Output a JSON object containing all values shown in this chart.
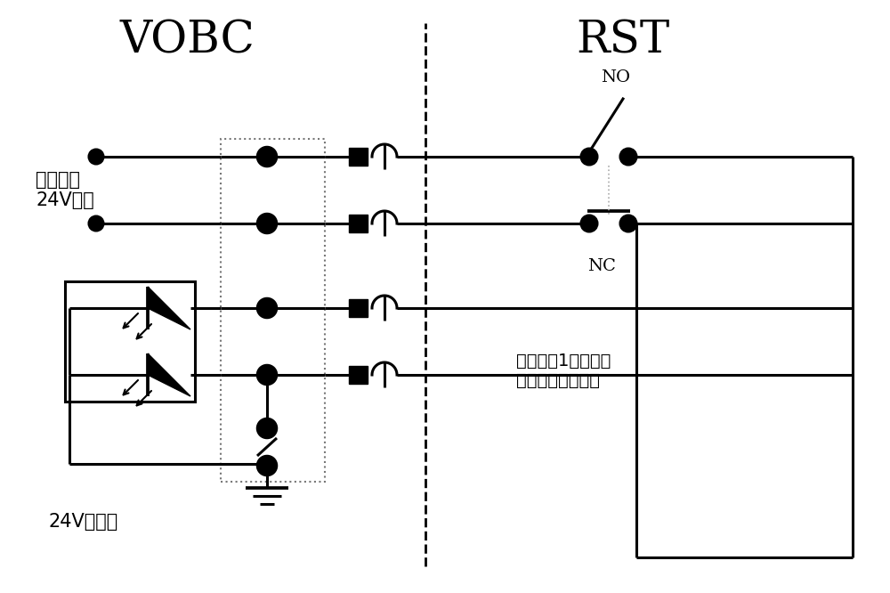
{
  "title_vobc": "VOBC",
  "title_rst": "RST",
  "label_input": "输入采集\n24V电源",
  "label_ground": "24V电源地",
  "label_no": "NO",
  "label_nc": "NC",
  "label_safety": "安全输入1的一个常\n开、一个常闭触点",
  "bg_color": "#ffffff",
  "line_color": "#000000"
}
